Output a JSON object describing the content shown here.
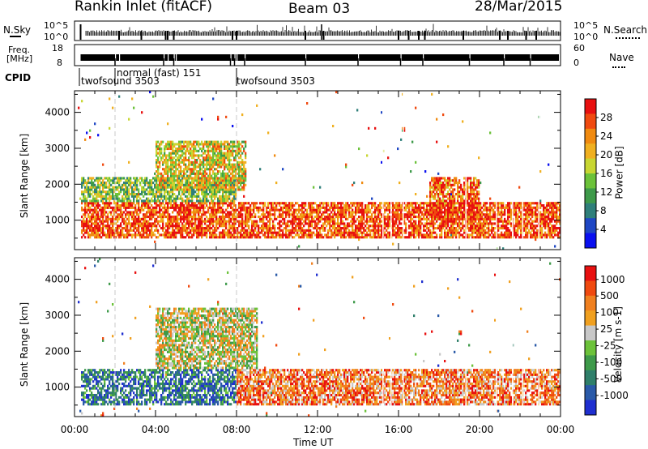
{
  "header": {
    "station": "Rankin Inlet (fitACF)",
    "beam": "Beam 03",
    "date": "28/Mar/2015"
  },
  "status_panels": {
    "nsky_label": "N.Sky",
    "nsearch_label": "N.Search",
    "nsky_ticks": [
      "10^5",
      "10^0"
    ],
    "nsky_right_ticks": [
      "10^5",
      "10^0"
    ],
    "freq_label_1": "Freq.",
    "freq_label_2": "[MHz]",
    "freq_ticks": [
      "18",
      "8"
    ],
    "nave_label": "Nave",
    "nave_ticks": [
      "60",
      "0"
    ],
    "cpid_label": "CPID",
    "cpid_segments": [
      {
        "label": "twofsound 3503",
        "start_hour": 0.0
      },
      {
        "label": "normal (fast) 151",
        "start_hour": 2.0
      },
      {
        "label": "twofsound 3503",
        "start_hour": 8.0
      }
    ]
  },
  "chart_data": [
    {
      "type": "heatmap",
      "variable": "Power",
      "colorbar_label": "Power [dB]",
      "colorbar_ticks": [
        "28",
        "24",
        "20",
        "16",
        "12",
        "8",
        "4"
      ],
      "ylabel": "Slant Range [km]",
      "ylim": [
        180,
        4600
      ],
      "yticks": [
        "4000",
        "3000",
        "2000",
        "1000"
      ],
      "xlim": [
        0,
        24
      ],
      "grid": false,
      "colorscale": [
        "#0a10f0",
        "#1f47c4",
        "#2f7f7a",
        "#3e9a4a",
        "#6cc23a",
        "#c8d632",
        "#f0b020",
        "#f08a10",
        "#f04a10",
        "#e81010"
      ],
      "echo_regions": [
        {
          "t0": 0.3,
          "t1": 24.0,
          "r0": 500,
          "r1": 1500,
          "level": 0.85
        },
        {
          "t0": 0.3,
          "t1": 8.0,
          "r0": 1500,
          "r1": 2200,
          "level": 0.45
        },
        {
          "t0": 4.0,
          "t1": 8.5,
          "r0": 1800,
          "r1": 3200,
          "level": 0.6
        },
        {
          "t0": 17.5,
          "t1": 20.0,
          "r0": 1000,
          "r1": 2200,
          "level": 0.8
        }
      ]
    },
    {
      "type": "heatmap",
      "variable": "Velocity",
      "colorbar_label": "Velocity [m s-1]",
      "colorbar_ticks": [
        "1000",
        "500",
        "100",
        "25",
        "-25",
        "-100",
        "-500",
        "-1000"
      ],
      "xlabel": "Time UT",
      "xticks": [
        "00:00",
        "04:00",
        "08:00",
        "12:00",
        "16:00",
        "20:00",
        "00:00"
      ],
      "ylabel": "Slant Range [km]",
      "ylim": [
        180,
        4600
      ],
      "yticks": [
        "4000",
        "3000",
        "2000",
        "1000"
      ],
      "xlim": [
        0,
        24
      ],
      "grid": false,
      "colorscale": [
        "#1f2fd0",
        "#2a5aa8",
        "#2f7f6a",
        "#3e9a4a",
        "#6cc23a",
        "#c8c8c8",
        "#f0a020",
        "#f08020",
        "#f04a10",
        "#e81010"
      ],
      "echo_regions": [
        {
          "t0": 0.3,
          "t1": 8.0,
          "r0": 500,
          "r1": 1500,
          "level": 0.2
        },
        {
          "t0": 8.0,
          "t1": 24.0,
          "r0": 500,
          "r1": 1500,
          "level": 0.75
        },
        {
          "t0": 4.0,
          "t1": 9.0,
          "r0": 1500,
          "r1": 3200,
          "level": 0.55
        }
      ]
    }
  ]
}
